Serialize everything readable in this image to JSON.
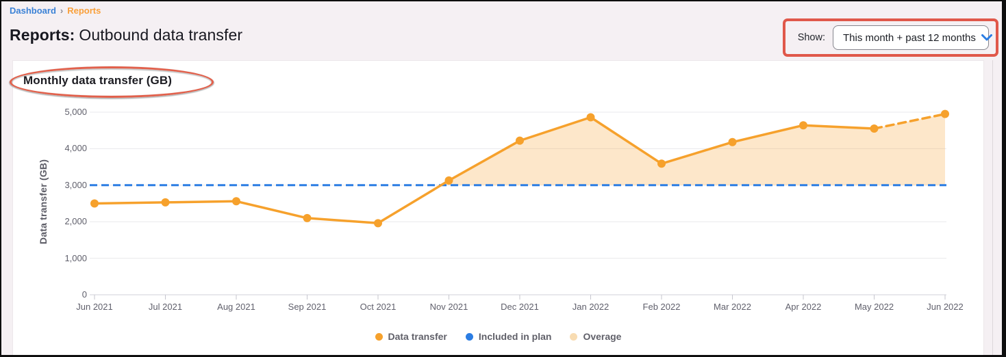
{
  "header": {
    "breadcrumb": {
      "dashboard": "Dashboard",
      "separator": "›",
      "current": "Reports"
    },
    "title_label": "Reports:",
    "title_value": "Outbound data transfer",
    "show_label": "Show:",
    "show_value": "This month + past 12 months"
  },
  "chart_card": {
    "title": "Monthly data transfer (GB)"
  },
  "chart_data": {
    "type": "line",
    "title": "Monthly data transfer (GB)",
    "xlabel": "",
    "ylabel": "Data transfer (GB)",
    "categories": [
      "Jun 2021",
      "Jul 2021",
      "Aug 2021",
      "Sep 2021",
      "Oct 2021",
      "Nov 2021",
      "Dec 2021",
      "Jan 2022",
      "Feb 2022",
      "Mar 2022",
      "Apr 2022",
      "May 2022",
      "Jun 2022"
    ],
    "series": [
      {
        "name": "Data transfer",
        "color": "#f6a12c",
        "values": [
          2500,
          2530,
          2560,
          2100,
          1960,
          3130,
          4220,
          4860,
          3590,
          4180,
          4640,
          4550,
          4950
        ],
        "projected_from_index": 11
      }
    ],
    "plan": {
      "name": "Included in plan",
      "value": 3000,
      "color": "#2b7de3",
      "style": "dashed"
    },
    "overage": {
      "name": "Overage",
      "fill": "#f6a12c",
      "fill_opacity": 0.25,
      "baseline": 3000
    },
    "ylim": [
      0,
      5000
    ],
    "ytick_values": [
      0,
      1000,
      2000,
      3000,
      4000,
      5000
    ],
    "ytick_labels": [
      "0",
      "1,000",
      "2,000",
      "3,000",
      "4,000",
      "5,000"
    ],
    "grid": "horizontal",
    "legend_position": "bottom-center",
    "legend": [
      {
        "label": "Data transfer",
        "color": "#f6a12c"
      },
      {
        "label": "Included in plan",
        "color": "#2b7de3"
      },
      {
        "label": "Overage",
        "color": "#f8dcb2"
      }
    ],
    "colors": {
      "gridline": "#e8e8ec",
      "axis_line": "#d2d2d8",
      "tick": "#c6c6ce"
    }
  },
  "annotations": {
    "show_filter_box_color": "#e0584a",
    "chart_title_ellipse_color": "#e2604b"
  }
}
